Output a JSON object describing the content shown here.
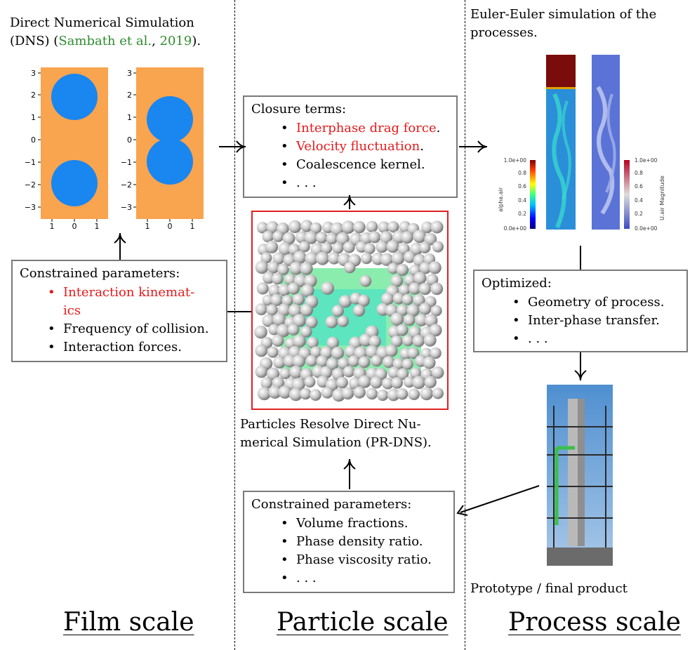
{
  "film": {
    "caption_line1": "Direct Numerical Simulation",
    "caption_dns": "(DNS) (",
    "caption_author": "Sambath et al.",
    "caption_comma": ", ",
    "caption_year": "2019",
    "caption_end": ").",
    "plot1": {
      "yticks": [
        "3",
        "2",
        "1",
        "0",
        "−1",
        "−2",
        "−3"
      ],
      "xticks": [
        "1",
        "0",
        "1"
      ]
    },
    "plot2": {
      "yticks": [
        "3",
        "2",
        "1",
        "0",
        "−1",
        "−2",
        "−3"
      ],
      "xticks": [
        "1",
        "0",
        "1"
      ]
    },
    "colors": {
      "fluid": "#f9a44f",
      "bubble": "#1a86f0"
    }
  },
  "film_box": {
    "head": "Constrained parameters:",
    "item1a": "Interaction   kinemat-",
    "item1b": "ics",
    "item2": "Frequency of collision.",
    "item3": "Interaction forces."
  },
  "closure_box": {
    "head": "Closure terms:",
    "items": [
      "Interphase drag force",
      "Velocity fluctuation",
      "Coalescence kernel.",
      ". . ."
    ],
    "item1_end": ".",
    "item2_end": "."
  },
  "particle": {
    "caption_line1": "Particles Resolve Direct Nu-",
    "caption_line2": "merical Simulation (PR-DNS)."
  },
  "particle_box": {
    "head": "Constrained parameters:",
    "items": [
      "Volume fractions.",
      "Phase density ratio.",
      "Phase viscosity ratio.",
      ". . ."
    ]
  },
  "process": {
    "caption_line1": "Euler-Euler simulation of the",
    "caption_line2": "processes.",
    "left_bar": {
      "label": "alpha.air",
      "ticks": [
        "1.0e+00",
        "0.8",
        "0.6",
        "0.4",
        "0.2",
        "0.0e+00"
      ]
    },
    "right_bar": {
      "label": "U.air Magnitude",
      "ticks": [
        "1.0e+00",
        "0.8",
        "0.6",
        "0.4",
        "0.2",
        "0.0e+00"
      ]
    },
    "prototype_caption": "Prototype / final product"
  },
  "optimized_box": {
    "head": "Optimized:",
    "items": [
      "Geometry of process.",
      "Inter-phase transfer.",
      ". . ."
    ]
  },
  "scales": {
    "film": "Film scale",
    "particle": "Particle scale",
    "process": "Process scale"
  },
  "colors": {
    "red": "#e41a1c",
    "green": "#2e8b2e",
    "box_border": "#7a7a7a",
    "pr_dns_border": "#e02020"
  }
}
